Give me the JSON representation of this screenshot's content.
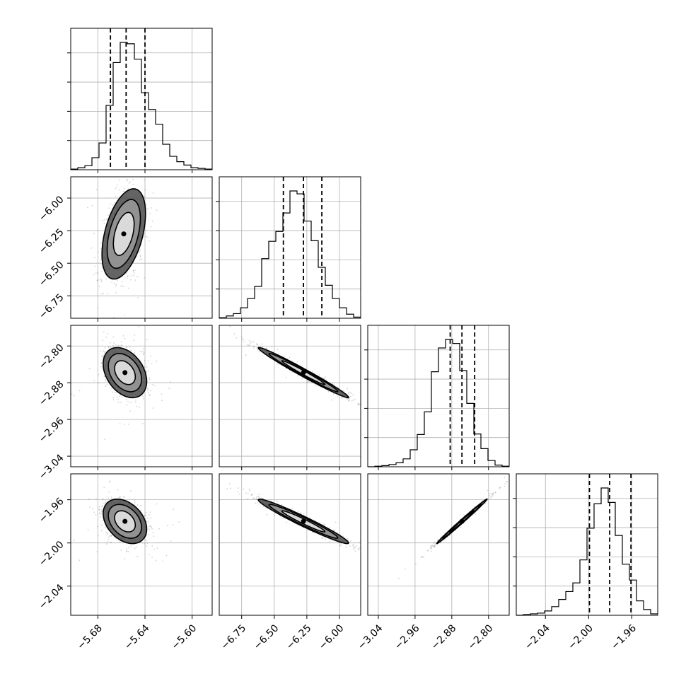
{
  "chart_data": {
    "type": "corner",
    "parameters": [
      {
        "index": 0,
        "range": [
          -5.703,
          -5.583
        ],
        "ticks": [
          "-5.68",
          "-5.64",
          "-5.60"
        ],
        "tick_values": [
          -5.68,
          -5.64,
          -5.6
        ],
        "quantiles": [
          -5.6693,
          -5.656,
          -5.64
        ]
      },
      {
        "index": 1,
        "range": [
          -6.922,
          -5.837
        ],
        "ticks": [
          "-6.75",
          "-6.50",
          "-6.25",
          "-6.00"
        ],
        "tick_values": [
          -6.75,
          -6.5,
          -6.25,
          -6.0
        ],
        "quantiles": [
          -6.43,
          -6.276,
          -6.135
        ]
      },
      {
        "index": 2,
        "range": [
          -3.063,
          -2.755
        ],
        "ticks": [
          "-3.04",
          "-2.96",
          "-2.88",
          "-2.80"
        ],
        "tick_values": [
          -3.04,
          -2.96,
          -2.88,
          -2.8
        ],
        "quantiles": [
          -2.8835,
          -2.8579,
          -2.8302
        ]
      },
      {
        "index": 3,
        "range": [
          -2.067,
          -1.936
        ],
        "ticks": [
          "-2.04",
          "-2.00",
          "-1.96"
        ],
        "tick_values": [
          -2.04,
          -2.0,
          -1.96
        ],
        "quantiles": [
          -1.9992,
          -1.9805,
          -1.9608
        ]
      }
    ],
    "histograms": [
      {
        "param": 0,
        "bin_start": -5.703,
        "bin_width": 0.006,
        "counts": [
          1,
          3,
          6,
          18,
          40,
          96,
          160,
          190,
          188,
          165,
          115,
          90,
          68,
          38,
          20,
          12,
          7,
          3,
          2,
          1
        ]
      },
      {
        "param": 1,
        "bin_start": -6.922,
        "bin_width": 0.05425,
        "counts": [
          1,
          4,
          8,
          18,
          34,
          55,
          103,
          133,
          150,
          182,
          220,
          215,
          168,
          134,
          88,
          57,
          34,
          18,
          7,
          2
        ]
      },
      {
        "param": 2,
        "bin_start": -3.063,
        "bin_width": 0.0154,
        "counts": [
          0,
          1,
          2,
          4,
          7,
          14,
          30,
          57,
          97,
          168,
          210,
          225,
          218,
          170,
          112,
          58,
          32,
          11,
          3,
          1
        ]
      },
      {
        "param": 3,
        "bin_start": -2.067,
        "bin_width": 0.00655,
        "counts": [
          0,
          1,
          2,
          3,
          6,
          12,
          22,
          33,
          45,
          77,
          121,
          155,
          177,
          157,
          111,
          71,
          49,
          20,
          8,
          2
        ]
      }
    ],
    "pairs": [
      {
        "x_param": 0,
        "y_param": 1,
        "center": [
          -5.658,
          -6.275
        ],
        "sigma": [
          0.0088,
          0.165
        ],
        "rho": 0.45
      },
      {
        "x_param": 0,
        "y_param": 2,
        "center": [
          -5.657,
          -2.858
        ],
        "sigma": [
          0.0088,
          0.026
        ],
        "rho": -0.35
      },
      {
        "x_param": 1,
        "y_param": 2,
        "center": [
          -6.276,
          -2.858
        ],
        "sigma": [
          0.165,
          0.026
        ],
        "rho": -0.985
      },
      {
        "x_param": 0,
        "y_param": 3,
        "center": [
          -5.657,
          -1.98
        ],
        "sigma": [
          0.0088,
          0.0098
        ],
        "rho": -0.35
      },
      {
        "x_param": 1,
        "y_param": 3,
        "center": [
          -6.276,
          -1.98
        ],
        "sigma": [
          0.165,
          0.0098
        ],
        "rho": -0.97
      },
      {
        "x_param": 2,
        "y_param": 3,
        "center": [
          -2.858,
          -1.98
        ],
        "sigma": [
          0.026,
          0.0098
        ],
        "rho": 0.995
      }
    ],
    "contour_levels_sigma": [
      1,
      1.6,
      2.1
    ],
    "grid": true,
    "colors": {
      "line": "#000000",
      "grid": "#b0b0b0",
      "points": "#808080"
    }
  }
}
